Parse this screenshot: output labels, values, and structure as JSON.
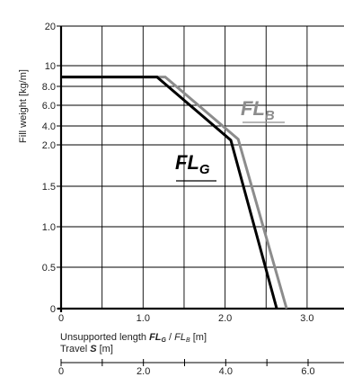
{
  "chart_data": {
    "type": "line",
    "y_axis": {
      "label": "Fill weight [kg/m]",
      "ticks": [
        "0",
        "0.5",
        "1.0",
        "1.5",
        "2.0",
        "4.0",
        "6.0",
        "8.0",
        "10",
        "20"
      ]
    },
    "x_axis": {
      "label_prefix": "Unsupported length ",
      "label_fl_g": "FL",
      "label_fl_g_sub": "G",
      "label_sep": " / ",
      "label_fl_b": "FL",
      "label_fl_b_sub": "B",
      "label_suffix": " [m]",
      "ticks": [
        {
          "label": "0",
          "value": 0
        },
        {
          "label": "1.0",
          "value": 1.0
        },
        {
          "label": "2.0",
          "value": 2.0
        },
        {
          "label": "3.0",
          "value": 3.0
        }
      ],
      "xlim": [
        0,
        3.45
      ]
    },
    "travel_axis": {
      "label_prefix": "Travel ",
      "label_var": "S",
      "label_suffix": " [m]",
      "ticks": [
        {
          "label": "0",
          "value": 0
        },
        {
          "label": "2.0",
          "value": 2.0
        },
        {
          "label": "4.0",
          "value": 4.0
        },
        {
          "label": "6.0",
          "value": 6.0
        }
      ]
    },
    "series": [
      {
        "name_main": "FL",
        "name_sub": "G",
        "color": "#000000",
        "points": [
          [
            0,
            8.9
          ],
          [
            1.17,
            8.9
          ],
          [
            2.07,
            2.5
          ],
          [
            2.63,
            0
          ]
        ]
      },
      {
        "name_main": "FL",
        "name_sub": "B",
        "color": "#8c8c8c",
        "points": [
          [
            0,
            8.9
          ],
          [
            1.27,
            8.9
          ],
          [
            2.16,
            2.6
          ],
          [
            2.75,
            0
          ]
        ]
      }
    ],
    "grid": true
  }
}
